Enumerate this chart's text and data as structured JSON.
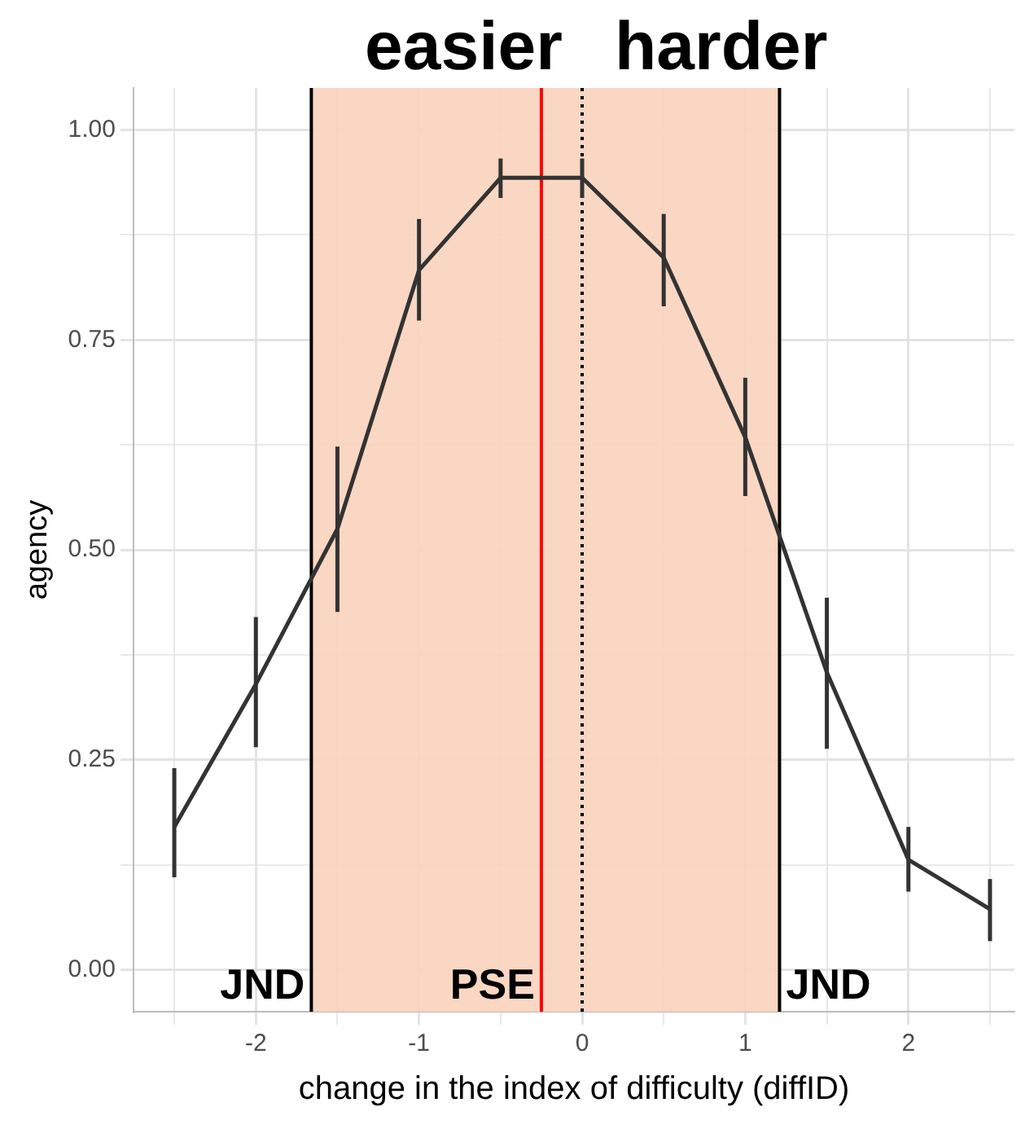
{
  "chart_data": {
    "type": "line",
    "xlabel": "change in the index of difficulty (diffID)",
    "ylabel": "agency",
    "x": [
      -2.5,
      -2,
      -1.5,
      -1,
      -0.5,
      0,
      0.5,
      1,
      1.5,
      2,
      2.5
    ],
    "series": [
      {
        "color": "#333333",
        "values": [
          0.17,
          0.34,
          0.525,
          0.833,
          0.943,
          0.943,
          0.848,
          0.634,
          0.354,
          0.131,
          0.072
        ],
        "errors": [
          [
            0.11,
            0.24
          ],
          [
            0.265,
            0.42
          ],
          [
            0.426,
            0.623
          ],
          [
            0.773,
            0.894
          ],
          [
            0.919,
            0.966
          ],
          [
            0.919,
            0.966
          ],
          [
            0.79,
            0.9
          ],
          [
            0.564,
            0.705
          ],
          [
            0.263,
            0.443
          ],
          [
            0.093,
            0.17
          ],
          [
            0.034,
            0.108
          ]
        ]
      }
    ],
    "xlim": [
      -2.75,
      2.65
    ],
    "ylim": [
      -0.05,
      1.05
    ],
    "xticks": [
      {
        "value": -2.5,
        "label": null
      },
      {
        "value": -2,
        "label": "-2"
      },
      {
        "value": -1.5,
        "label": null
      },
      {
        "value": -1,
        "label": "-1"
      },
      {
        "value": -0.5,
        "label": null
      },
      0,
      {
        "value": 0.5,
        "label": null
      },
      1,
      {
        "value": 1.5,
        "label": null
      },
      2,
      {
        "value": 2.5,
        "label": null
      }
    ],
    "yticks": [
      {
        "value": 0,
        "label": "0.00"
      },
      {
        "value": 0.125,
        "label": null
      },
      {
        "value": 0.25,
        "label": "0.25"
      },
      {
        "value": 0.375,
        "label": null
      },
      {
        "value": 0.5,
        "label": "0.50"
      },
      {
        "value": 0.625,
        "label": null
      },
      {
        "value": 0.75,
        "label": "0.75"
      },
      {
        "value": 0.875,
        "label": null
      },
      {
        "value": 1,
        "label": "1.00"
      }
    ],
    "grid": true,
    "legend": false,
    "marker": "none",
    "line_style": "solid",
    "bands": [
      {
        "axis": "x",
        "from": -1.66,
        "to": 1.21,
        "color": "#f8d3bd"
      }
    ],
    "ref_lines": [
      {
        "axis": "x",
        "value": -1.66,
        "label": "JND",
        "color": "#000000",
        "line_style": "solid"
      },
      {
        "axis": "x",
        "value": -0.25,
        "label": "PSE",
        "color": "#ff0000",
        "line_style": "solid"
      },
      {
        "axis": "x",
        "value": 0,
        "label": null,
        "color": "#000000",
        "line_style": "dotted"
      },
      {
        "axis": "x",
        "value": 1.21,
        "label": "JND",
        "color": "#000000",
        "line_style": "solid"
      }
    ],
    "annotations": [
      "easier",
      "harder"
    ]
  }
}
